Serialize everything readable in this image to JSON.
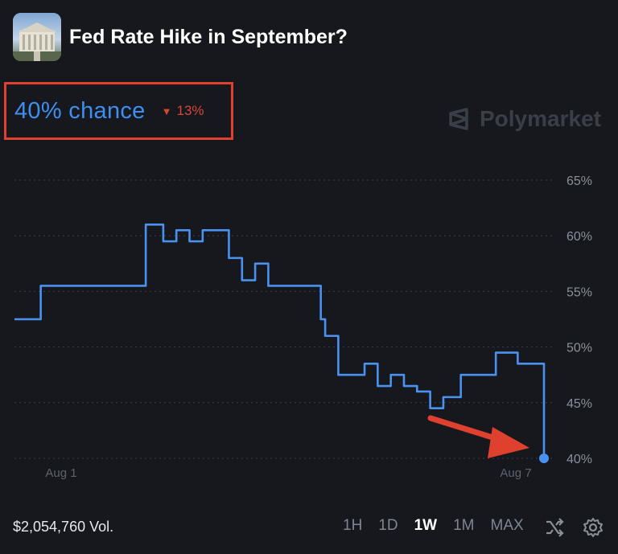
{
  "header": {
    "title": "Fed Rate Hike in September?"
  },
  "probability": {
    "label": "40% chance",
    "change": "13%",
    "change_direction": "down"
  },
  "brand": {
    "name": "Polymarket"
  },
  "chart_data": {
    "type": "line",
    "series": [
      {
        "x": [
          0,
          0.3,
          1.0,
          1.5,
          1.7,
          1.85,
          2.0,
          2.15,
          2.3,
          2.45,
          2.6,
          2.75,
          2.9,
          3.2,
          3.5,
          3.55,
          3.7,
          3.85,
          4.0,
          4.05,
          4.15,
          4.3,
          4.45,
          4.6,
          4.75,
          4.9,
          5.1,
          5.25,
          5.5,
          5.75,
          6.05
        ],
        "y": [
          52.5,
          55.5,
          55.5,
          61.0,
          59.5,
          60.5,
          59.5,
          60.5,
          60.5,
          58.0,
          56.0,
          57.5,
          55.5,
          55.5,
          52.5,
          51.0,
          47.5,
          47.5,
          48.5,
          48.5,
          46.5,
          47.5,
          46.5,
          46.0,
          44.5,
          45.5,
          47.5,
          47.5,
          49.5,
          48.5,
          40.0
        ]
      }
    ],
    "x_ticks": [
      "Aug 1",
      "Aug 7"
    ],
    "y_ticks": [
      "65%",
      "60%",
      "55%",
      "50%",
      "45%",
      "40%"
    ],
    "ylim": [
      40,
      65
    ],
    "line_color": "#4a92ef",
    "grid": true
  },
  "annotation": {
    "arrow_color": "#e0402e"
  },
  "footer": {
    "volume": "$2,054,760 Vol.",
    "ranges": [
      "1H",
      "1D",
      "1W",
      "1M",
      "MAX"
    ],
    "active_range": "1W"
  },
  "icons": {
    "shuffle": "shuffle-icon",
    "settings": "gear-icon"
  }
}
